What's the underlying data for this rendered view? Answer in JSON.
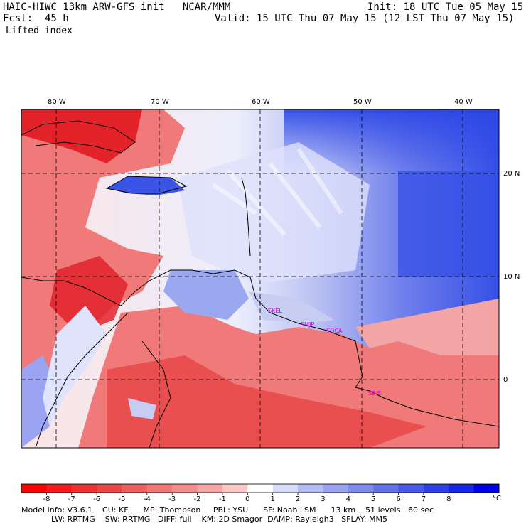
{
  "header": {
    "title": "HAIC-HIWC 13km ARW-GFS init   NCAR/MMM",
    "fcst": "Fcst:  45 h",
    "init": "Init: 18 UTC Tue 05 May 15",
    "valid": "Valid: 15 UTC Thu 07 May 15 (12 LST Thu 07 May 15)",
    "field": "Lifted index"
  },
  "map": {
    "lon_labels": [
      "80 W",
      "70 W",
      "60 W",
      "50 W",
      "40 W"
    ],
    "lat_labels": [
      "20 N",
      "10 N",
      "0"
    ],
    "stations": [
      "SKEL",
      "SMJP",
      "SOCA",
      "SBIE"
    ],
    "colors": {
      "strong_unstable": "#e3222a",
      "unstable": "#f07a7a",
      "neutral": "#fbe4e4",
      "stable": "#c6ccf2",
      "strong_stable": "#1a3fe6",
      "ocean_mid": "#dfe3fb"
    }
  },
  "colorbar": {
    "ticks": [
      "-8",
      "-7",
      "-6",
      "-5",
      "-4",
      "-3",
      "-2",
      "-1",
      "0",
      "1",
      "2",
      "3",
      "4",
      "5",
      "6",
      "7",
      "8"
    ],
    "unit": "°C",
    "colors": [
      "#ff0000",
      "#f41c1c",
      "#f03232",
      "#ec4848",
      "#ef5e5e",
      "#f27676",
      "#f58c8c",
      "#f8a4a4",
      "#fbc8c8",
      "#ffffff",
      "#d8dcfa",
      "#b4bcf5",
      "#9aa4f2",
      "#7f8cef",
      "#6472ec",
      "#4a5aea",
      "#3040e8",
      "#1428e6",
      "#0000e6"
    ]
  },
  "model_info": {
    "line1": "Model Info: V3.6.1    CU: KF      MP: Thompson     PBL: YSU      SF: Noah LSM      13 km    51 levels   60 sec",
    "line2": "LW: RRTMG    SW: RRTMG   DIFF: full    KM: 2D Smagor  DAMP: Rayleigh3   SFLAY: MM5"
  }
}
